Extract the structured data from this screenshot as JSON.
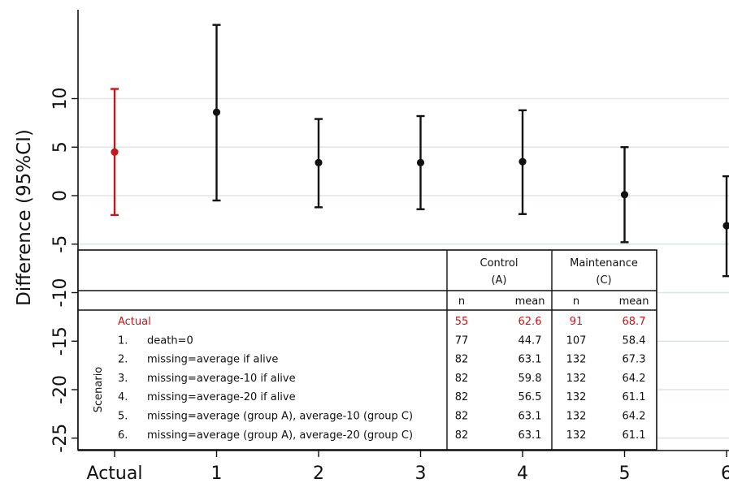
{
  "chart_data": {
    "type": "scatter",
    "subtype": "point-with-error-bars",
    "ylabel": "Difference (95%CI)",
    "xlabel": "",
    "categories": [
      "Actual",
      "1",
      "2",
      "3",
      "4",
      "5",
      "6"
    ],
    "y_ticks": [
      10,
      5,
      0,
      -5,
      -10,
      -15,
      -20,
      -25
    ],
    "y_tick_labels": [
      "10",
      "5",
      "0",
      "-5",
      "-10",
      "-15",
      "-20",
      "-25"
    ],
    "ylim": [
      -28,
      19
    ],
    "grid": true,
    "points": [
      {
        "x": "Actual",
        "estimate": 4.5,
        "lower": -2.0,
        "upper": 11.0,
        "color": "#c0191f"
      },
      {
        "x": "1",
        "estimate": 8.6,
        "lower": -0.5,
        "upper": 17.6,
        "color": "#111111"
      },
      {
        "x": "2",
        "estimate": 3.4,
        "lower": -1.2,
        "upper": 7.9,
        "color": "#111111"
      },
      {
        "x": "3",
        "estimate": 3.4,
        "lower": -1.4,
        "upper": 8.2,
        "color": "#111111"
      },
      {
        "x": "4",
        "estimate": 3.5,
        "lower": -1.9,
        "upper": 8.8,
        "color": "#111111"
      },
      {
        "x": "5",
        "estimate": 0.1,
        "lower": -4.8,
        "upper": 5.0,
        "color": "#111111"
      },
      {
        "x": "6",
        "estimate": -3.1,
        "lower": -8.3,
        "upper": 2.0,
        "color": "#111111"
      }
    ]
  },
  "table": {
    "group_control_line1": "Control",
    "group_control_line2": "(A)",
    "group_maint_line1": "Maintenance",
    "group_maint_line2": "(C)",
    "col_n": "n",
    "col_mean": "mean",
    "scenario_label": "Scenario",
    "rows": [
      {
        "num": "",
        "label": "Actual",
        "a_n": "55",
        "a_mean": "62.6",
        "c_n": "91",
        "c_mean": "68.7",
        "highlight": true
      },
      {
        "num": "1.",
        "label": "death=0",
        "a_n": "77",
        "a_mean": "44.7",
        "c_n": "107",
        "c_mean": "58.4",
        "highlight": false
      },
      {
        "num": "2.",
        "label": "missing=average if alive",
        "a_n": "82",
        "a_mean": "63.1",
        "c_n": "132",
        "c_mean": "67.3",
        "highlight": false
      },
      {
        "num": "3.",
        "label": "missing=average-10 if alive",
        "a_n": "82",
        "a_mean": "59.8",
        "c_n": "132",
        "c_mean": "64.2",
        "highlight": false
      },
      {
        "num": "4.",
        "label": "missing=average-20 if alive",
        "a_n": "82",
        "a_mean": "56.5",
        "c_n": "132",
        "c_mean": "61.1",
        "highlight": false
      },
      {
        "num": "5.",
        "label": "missing=average (group A), average-10  (group C)",
        "a_n": "82",
        "a_mean": "63.1",
        "c_n": "132",
        "c_mean": "64.2",
        "highlight": false
      },
      {
        "num": "6.",
        "label": "missing=average (group A), average-20 (group C)",
        "a_n": "82",
        "a_mean": "63.1",
        "c_n": "132",
        "c_mean": "61.1",
        "highlight": false
      }
    ]
  },
  "colors": {
    "highlight": "#c0191f",
    "ink": "#111111",
    "grid": "#dde6e8"
  }
}
